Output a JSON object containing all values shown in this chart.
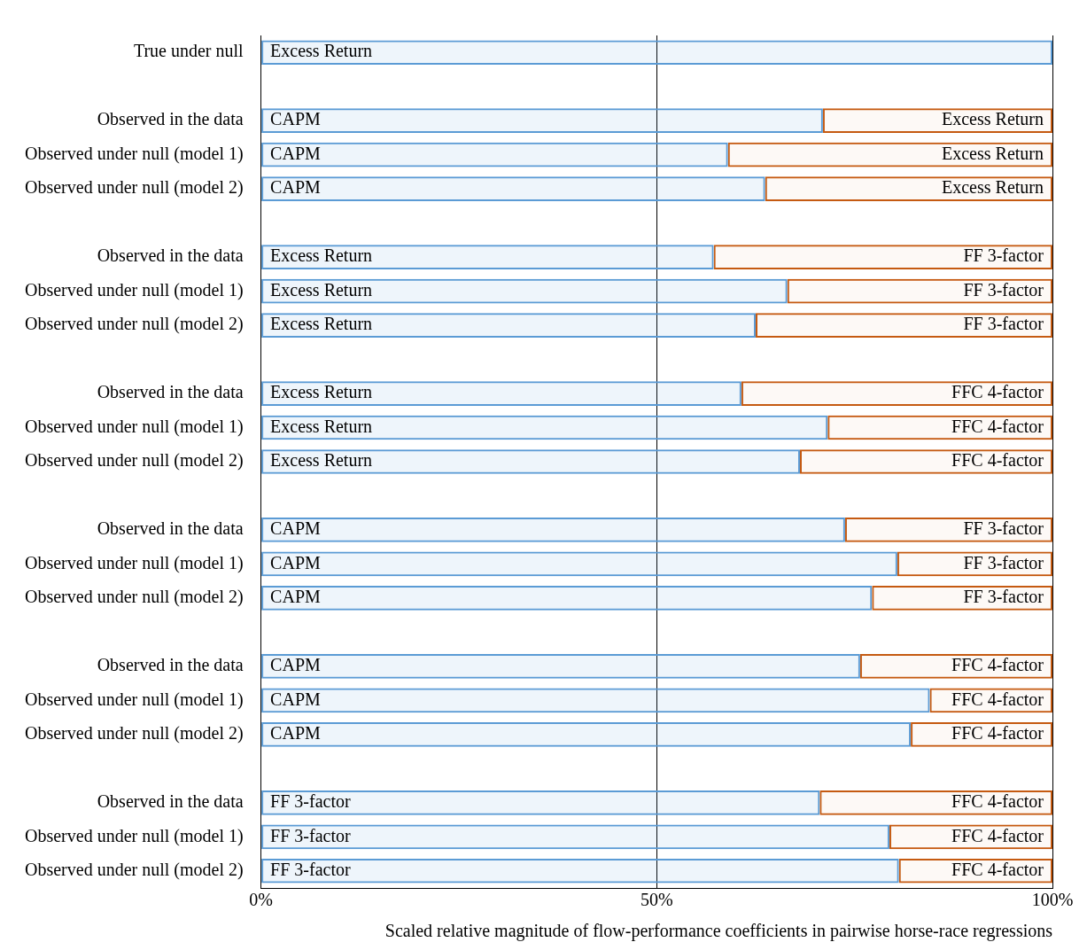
{
  "chart_data": {
    "type": "bar",
    "orientation": "horizontal",
    "stacked": true,
    "grid": "x",
    "legend": false,
    "xlabel": "Scaled relative magnitude of flow-performance coefficients in pairwise horse-race regressions",
    "xlim": [
      0,
      100
    ],
    "xticks": [
      {
        "value": 0,
        "label": "0%"
      },
      {
        "value": 50,
        "label": "50%"
      },
      {
        "value": 100,
        "label": "100%"
      }
    ],
    "categories": [
      "True under null",
      null,
      "Observed in the data",
      "Observed under null (model 1)",
      "Observed under null (model 2)",
      null,
      "Observed in the data",
      "Observed under null (model 1)",
      "Observed under null (model 2)",
      null,
      "Observed in the data",
      "Observed under null (model 1)",
      "Observed under null (model 2)",
      null,
      "Observed in the data",
      "Observed under null (model 1)",
      "Observed under null (model 2)",
      null,
      "Observed in the data",
      "Observed under null (model 1)",
      "Observed under null (model 2)",
      null,
      "Observed in the data",
      "Observed under null (model 1)",
      "Observed under null (model 2)"
    ],
    "series": [
      {
        "color": "#5b9bd5",
        "values": [
          100,
          null,
          71.0,
          59.0,
          63.7,
          null,
          57.2,
          66.5,
          62.5,
          null,
          60.7,
          71.6,
          68.1,
          null,
          73.8,
          80.4,
          77.2,
          null,
          75.7,
          84.5,
          82.1,
          null,
          70.6,
          79.4,
          80.6
        ],
        "value_labels": [
          "Excess Return",
          null,
          "CAPM",
          "CAPM",
          "CAPM",
          null,
          "Excess Return",
          "Excess Return",
          "Excess Return",
          null,
          "Excess Return",
          "Excess Return",
          "Excess Return",
          null,
          "CAPM",
          "CAPM",
          "CAPM",
          null,
          "CAPM",
          "CAPM",
          "CAPM",
          null,
          "FF 3-factor",
          "FF 3-factor",
          "FF 3-factor"
        ]
      },
      {
        "color": "#c55a11",
        "values": [
          null,
          null,
          29.0,
          41.0,
          36.3,
          null,
          42.8,
          33.5,
          37.5,
          null,
          39.3,
          28.4,
          31.9,
          null,
          26.2,
          19.6,
          22.8,
          null,
          24.3,
          15.5,
          17.9,
          null,
          29.4,
          20.6,
          19.4
        ],
        "value_labels": [
          null,
          null,
          "Excess Return",
          "Excess Return",
          "Excess Return",
          null,
          "FF 3-factor",
          "FF 3-factor",
          "FF 3-factor",
          null,
          "FFC 4-factor",
          "FFC 4-factor",
          "FFC 4-factor",
          null,
          "FF 3-factor",
          "FF 3-factor",
          "FF 3-factor",
          null,
          "FFC 4-factor",
          "FFC 4-factor",
          "FFC 4-factor",
          null,
          "FFC 4-factor",
          "FFC 4-factor",
          "FFC 4-factor"
        ]
      }
    ]
  }
}
